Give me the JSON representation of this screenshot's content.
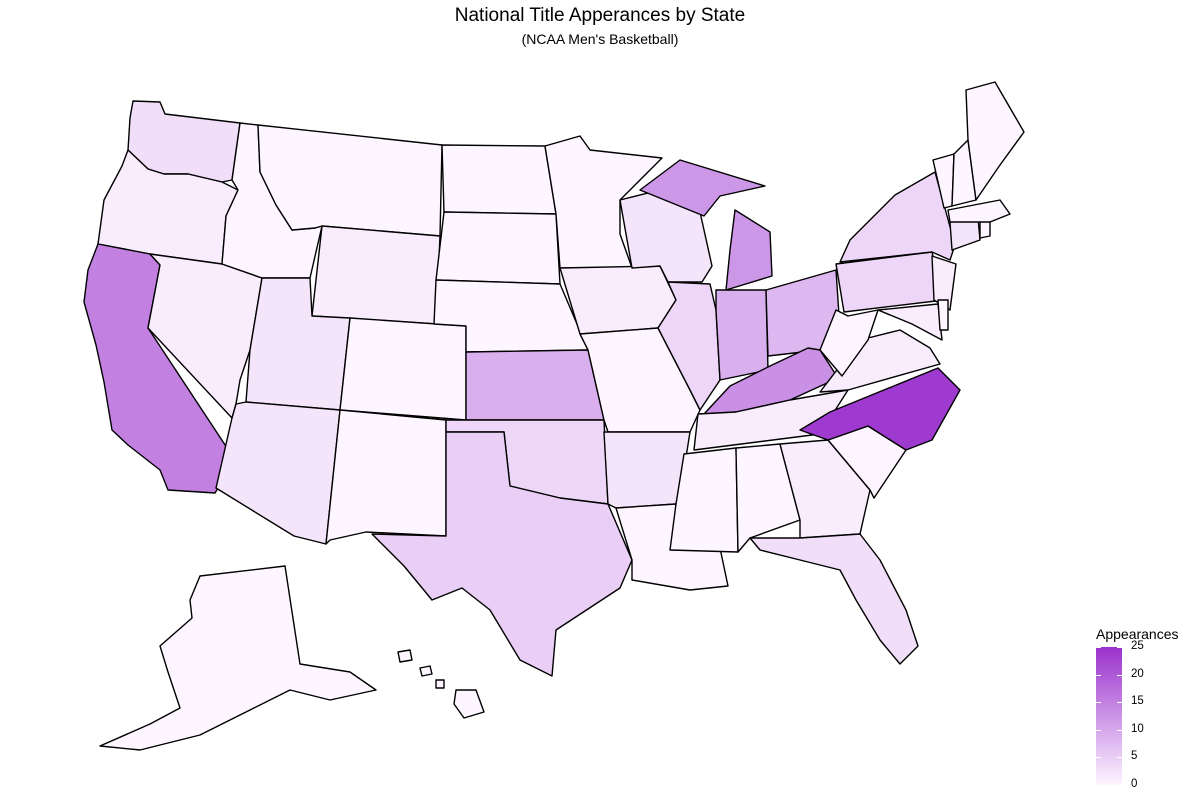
{
  "title": "National Title Apperances by State",
  "subtitle": "(NCAA Men's Basketball)",
  "legend": {
    "title": "Appearances",
    "min": 0,
    "max": 25,
    "ticks": [
      "25",
      "20",
      "15",
      "10",
      "5",
      "0"
    ],
    "low_color": "#fdf5ff",
    "high_color": "#9a32cd"
  },
  "states": [
    {
      "id": "WA",
      "name": "Washington",
      "value": 3
    },
    {
      "id": "OR",
      "name": "Oregon",
      "value": 1
    },
    {
      "id": "CA",
      "name": "California",
      "value": 15
    },
    {
      "id": "NV",
      "name": "Nevada",
      "value": 1
    },
    {
      "id": "ID",
      "name": "Idaho",
      "value": 0
    },
    {
      "id": "MT",
      "name": "Montana",
      "value": 0
    },
    {
      "id": "WY",
      "name": "Wyoming",
      "value": 1
    },
    {
      "id": "UT",
      "name": "Utah",
      "value": 2
    },
    {
      "id": "AZ",
      "name": "Arizona",
      "value": 2
    },
    {
      "id": "CO",
      "name": "Colorado",
      "value": 0
    },
    {
      "id": "NM",
      "name": "New Mexico",
      "value": 0
    },
    {
      "id": "ND",
      "name": "North Dakota",
      "value": 0
    },
    {
      "id": "SD",
      "name": "South Dakota",
      "value": 0
    },
    {
      "id": "NE",
      "name": "Nebraska",
      "value": 0
    },
    {
      "id": "KS",
      "name": "Kansas",
      "value": 9
    },
    {
      "id": "OK",
      "name": "Oklahoma",
      "value": 4
    },
    {
      "id": "TX",
      "name": "Texas",
      "value": 5
    },
    {
      "id": "MN",
      "name": "Minnesota",
      "value": 0
    },
    {
      "id": "IA",
      "name": "Iowa",
      "value": 1
    },
    {
      "id": "MO",
      "name": "Missouri",
      "value": 0
    },
    {
      "id": "AR",
      "name": "Arkansas",
      "value": 2
    },
    {
      "id": "LA",
      "name": "Louisiana",
      "value": 0
    },
    {
      "id": "WI",
      "name": "Wisconsin",
      "value": 2
    },
    {
      "id": "IL",
      "name": "Illinois",
      "value": 4
    },
    {
      "id": "MI",
      "name": "Michigan",
      "value": 12
    },
    {
      "id": "IN",
      "name": "Indiana",
      "value": 9
    },
    {
      "id": "OH",
      "name": "Ohio",
      "value": 8
    },
    {
      "id": "KY",
      "name": "Kentucky",
      "value": 13
    },
    {
      "id": "TN",
      "name": "Tennessee",
      "value": 1
    },
    {
      "id": "MS",
      "name": "Mississippi",
      "value": 0
    },
    {
      "id": "AL",
      "name": "Alabama",
      "value": 0
    },
    {
      "id": "GA",
      "name": "Georgia",
      "value": 1
    },
    {
      "id": "FL",
      "name": "Florida",
      "value": 3
    },
    {
      "id": "SC",
      "name": "South Carolina",
      "value": 0
    },
    {
      "id": "NC",
      "name": "North Carolina",
      "value": 24
    },
    {
      "id": "VA",
      "name": "Virginia",
      "value": 1
    },
    {
      "id": "WV",
      "name": "West Virginia",
      "value": 0
    },
    {
      "id": "PA",
      "name": "Pennsylvania",
      "value": 4
    },
    {
      "id": "NY",
      "name": "New York",
      "value": 4
    },
    {
      "id": "NJ",
      "name": "New Jersey",
      "value": 1
    },
    {
      "id": "MD",
      "name": "Maryland",
      "value": 1
    },
    {
      "id": "DE",
      "name": "Delaware",
      "value": 0
    },
    {
      "id": "CT",
      "name": "Connecticut",
      "value": 2
    },
    {
      "id": "RI",
      "name": "Rhode Island",
      "value": 0
    },
    {
      "id": "MA",
      "name": "Massachusetts",
      "value": 0
    },
    {
      "id": "VT",
      "name": "Vermont",
      "value": 0
    },
    {
      "id": "NH",
      "name": "New Hampshire",
      "value": 0
    },
    {
      "id": "ME",
      "name": "Maine",
      "value": 0
    },
    {
      "id": "AK",
      "name": "Alaska",
      "value": 0
    },
    {
      "id": "HI",
      "name": "Hawaii",
      "value": 0
    }
  ]
}
